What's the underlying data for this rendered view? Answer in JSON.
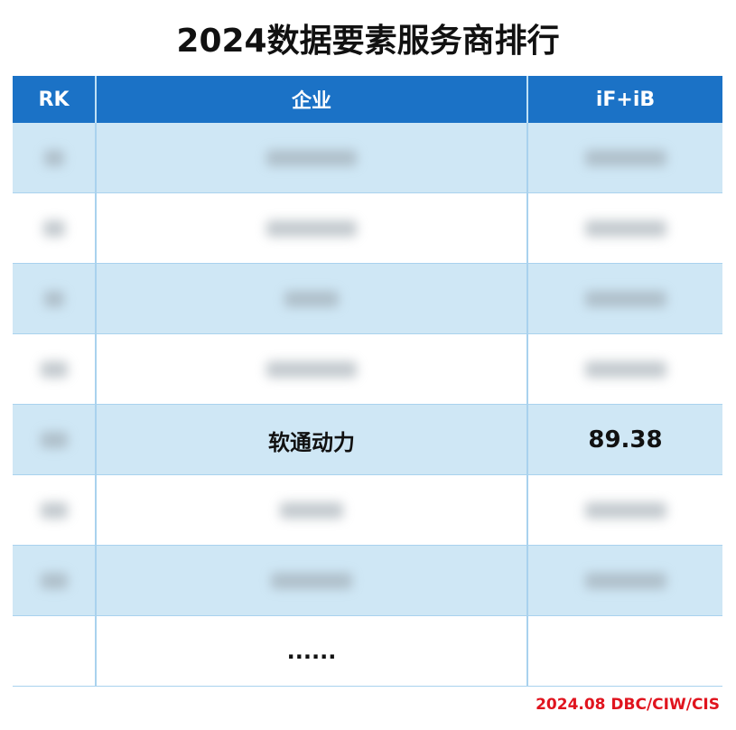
{
  "header": {
    "title": "2024数据要素服务商排行"
  },
  "table": {
    "columns": [
      "RK",
      "企业",
      "iF+iB"
    ],
    "featured_row": {
      "company": "软通动力",
      "score": "89.38"
    },
    "continuation": "......"
  },
  "footer": {
    "source": "2024.08 DBC/CIW/CIS"
  }
}
